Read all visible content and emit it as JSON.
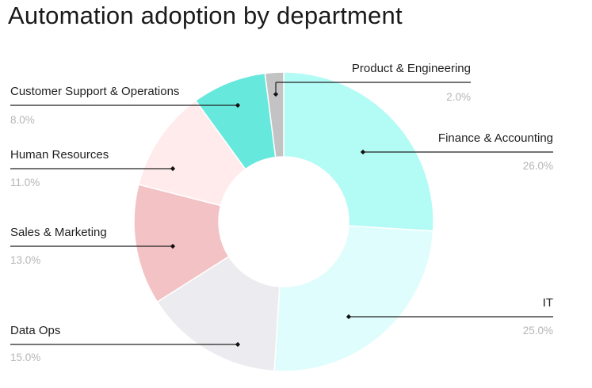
{
  "chart_data": {
    "type": "pie",
    "title": "Automation adoption by department",
    "categories": [
      "Finance & Accounting",
      "IT",
      "Data Ops",
      "Sales & Marketing",
      "Human Resources",
      "Customer Support & Operations",
      "Product & Engineering"
    ],
    "values": [
      26.0,
      25.0,
      15.0,
      13.0,
      11.0,
      8.0,
      2.0
    ],
    "value_labels": [
      "26.0%",
      "25.0%",
      "15.0%",
      "13.0%",
      "11.0%",
      "8.0%",
      "2.0%"
    ],
    "colors": [
      "#b3fbf5",
      "#dffdfc",
      "#ececf0",
      "#f3c2c4",
      "#ffebeb",
      "#66e8dc",
      "#c3c3c3"
    ],
    "donut": true,
    "legend": "none"
  }
}
